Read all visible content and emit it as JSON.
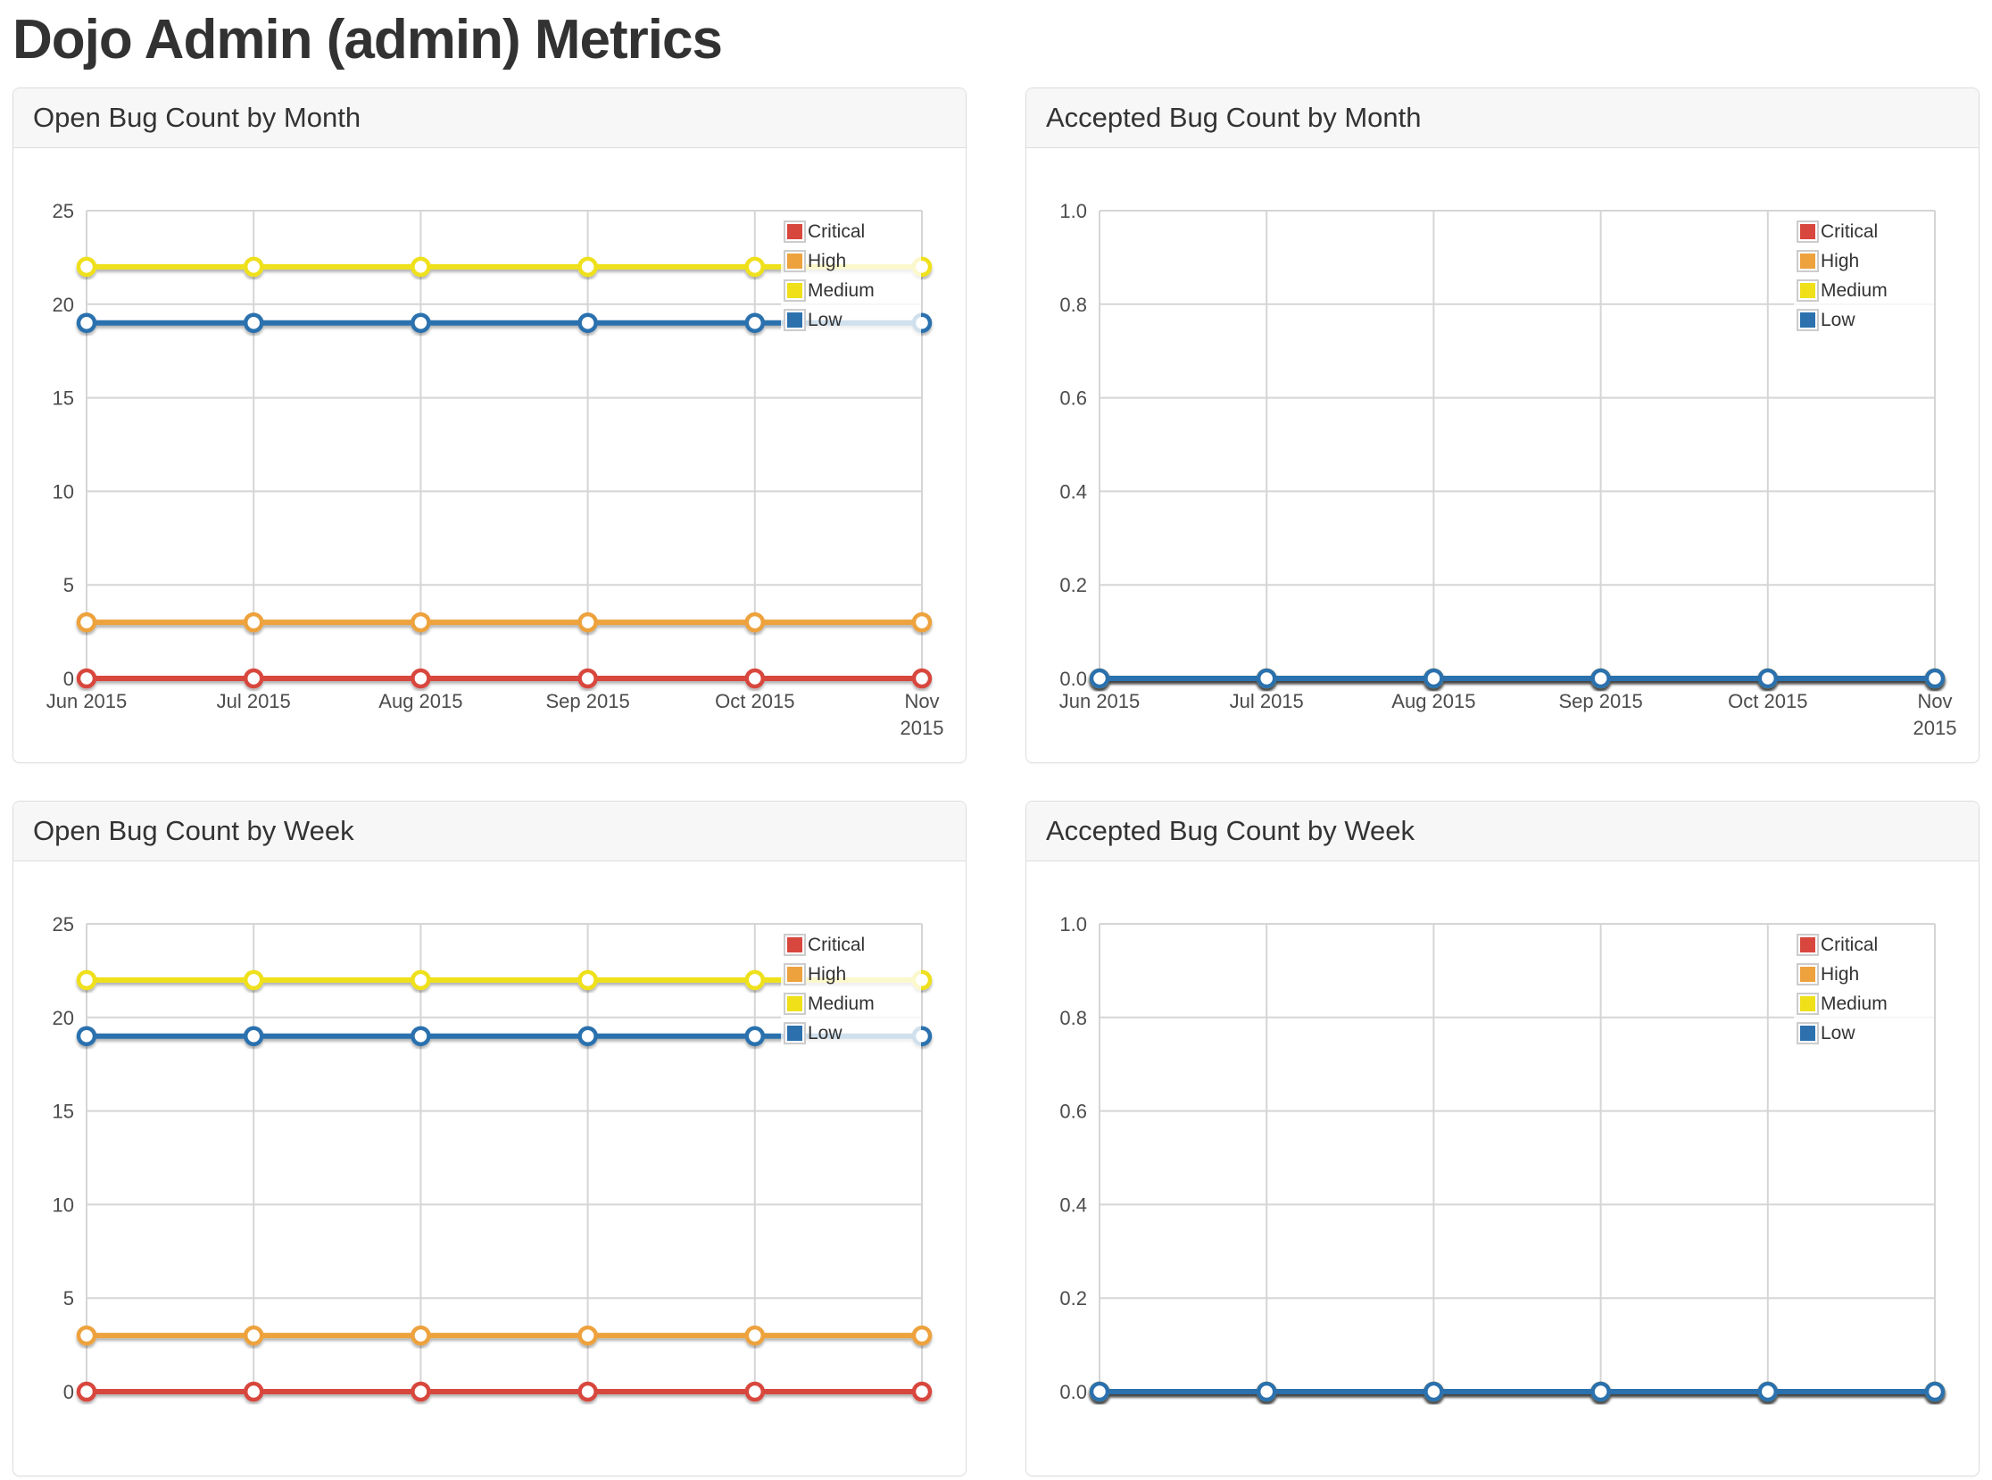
{
  "page": {
    "title": "Dojo Admin (admin) Metrics"
  },
  "colors": {
    "critical": "#d8473e",
    "high": "#eda23e",
    "medium": "#efe01a",
    "low": "#2c71ae",
    "gridline": "#d5d5d5",
    "panel_heading_bg": "#f7f7f7",
    "panel_border": "#dddddd",
    "axis_text": "#4c4c4c"
  },
  "chart_data": [
    {
      "type": "line",
      "title": "Open Bug Count by Month",
      "categories": [
        "Jun 2015",
        "Jul 2015",
        "Aug 2015",
        "Sep 2015",
        "Oct 2015",
        "Nov\n2015"
      ],
      "series": [
        {
          "name": "Critical",
          "color": "#d8473e",
          "values": [
            0,
            0,
            0,
            0,
            0,
            0
          ]
        },
        {
          "name": "High",
          "color": "#eda23e",
          "values": [
            3,
            3,
            3,
            3,
            3,
            3
          ]
        },
        {
          "name": "Medium",
          "color": "#efe01a",
          "values": [
            22,
            22,
            22,
            22,
            22,
            22
          ]
        },
        {
          "name": "Low",
          "color": "#2c71ae",
          "values": [
            19,
            19,
            19,
            19,
            19,
            19
          ]
        }
      ],
      "xlabel": "",
      "ylabel": "",
      "ylim": [
        0,
        25
      ],
      "ytick_values": [
        0,
        5,
        10,
        15,
        20,
        25
      ],
      "ytick_labels": [
        "0",
        "5",
        "10",
        "15",
        "20",
        "25"
      ],
      "grid": true,
      "legend_position": "top-right"
    },
    {
      "type": "line",
      "title": "Accepted Bug Count by Month",
      "categories": [
        "Jun 2015",
        "Jul 2015",
        "Aug 2015",
        "Sep 2015",
        "Oct 2015",
        "Nov\n2015"
      ],
      "series": [
        {
          "name": "Critical",
          "color": "#d8473e",
          "values": [
            0,
            0,
            0,
            0,
            0,
            0
          ]
        },
        {
          "name": "High",
          "color": "#eda23e",
          "values": [
            0,
            0,
            0,
            0,
            0,
            0
          ]
        },
        {
          "name": "Medium",
          "color": "#efe01a",
          "values": [
            0,
            0,
            0,
            0,
            0,
            0
          ]
        },
        {
          "name": "Low",
          "color": "#2c71ae",
          "values": [
            0,
            0,
            0,
            0,
            0,
            0
          ]
        }
      ],
      "xlabel": "",
      "ylabel": "",
      "ylim": [
        0,
        1
      ],
      "ytick_values": [
        0,
        0.2,
        0.4,
        0.6,
        0.8,
        1
      ],
      "ytick_labels": [
        "0.0",
        "0.2",
        "0.4",
        "0.6",
        "0.8",
        "1.0"
      ],
      "grid": true,
      "legend_position": "top-right"
    },
    {
      "type": "line",
      "title": "Open Bug Count by Week",
      "categories": [],
      "series": [
        {
          "name": "Critical",
          "color": "#d8473e",
          "values": [
            0,
            0,
            0,
            0,
            0,
            0
          ]
        },
        {
          "name": "High",
          "color": "#eda23e",
          "values": [
            3,
            3,
            3,
            3,
            3,
            3
          ]
        },
        {
          "name": "Medium",
          "color": "#efe01a",
          "values": [
            22,
            22,
            22,
            22,
            22,
            22
          ]
        },
        {
          "name": "Low",
          "color": "#2c71ae",
          "values": [
            19,
            19,
            19,
            19,
            19,
            19
          ]
        }
      ],
      "xlabel": "",
      "ylabel": "",
      "ylim": [
        0,
        25
      ],
      "ytick_values": [
        0,
        5,
        10,
        15,
        20,
        25
      ],
      "ytick_labels": [
        "0",
        "5",
        "10",
        "15",
        "20",
        "25"
      ],
      "grid": true,
      "legend_position": "top-right"
    },
    {
      "type": "line",
      "title": "Accepted Bug Count by Week",
      "categories": [],
      "series": [
        {
          "name": "Critical",
          "color": "#d8473e",
          "values": [
            0,
            0,
            0,
            0,
            0,
            0
          ]
        },
        {
          "name": "High",
          "color": "#eda23e",
          "values": [
            0,
            0,
            0,
            0,
            0,
            0
          ]
        },
        {
          "name": "Medium",
          "color": "#efe01a",
          "values": [
            0,
            0,
            0,
            0,
            0,
            0
          ]
        },
        {
          "name": "Low",
          "color": "#2c71ae",
          "values": [
            0,
            0,
            0,
            0,
            0,
            0
          ]
        }
      ],
      "xlabel": "",
      "ylabel": "",
      "ylim": [
        0,
        1
      ],
      "ytick_values": [
        0,
        0.2,
        0.4,
        0.6,
        0.8,
        1
      ],
      "ytick_labels": [
        "0.0",
        "0.2",
        "0.4",
        "0.6",
        "0.8",
        "1.0"
      ],
      "grid": true,
      "legend_position": "top-right"
    }
  ]
}
